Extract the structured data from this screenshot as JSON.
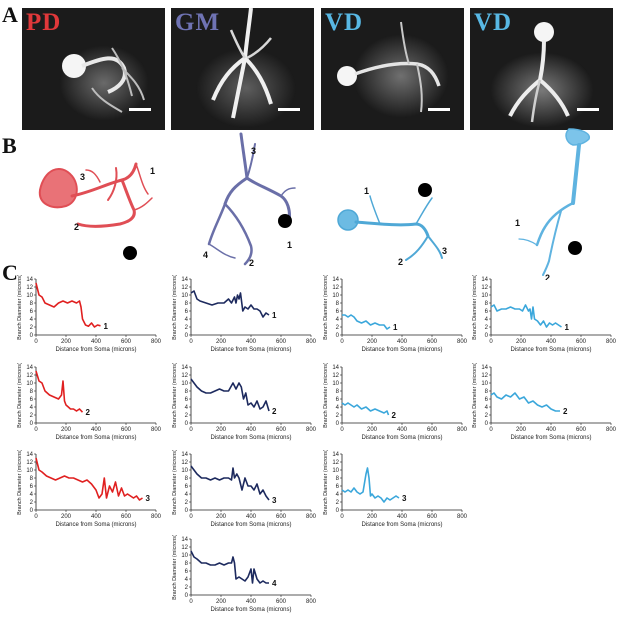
{
  "panels": {
    "a": "A",
    "b": "B",
    "c": "C"
  },
  "photos": [
    {
      "label": "PD",
      "color": "#e0383a"
    },
    {
      "label": "GM",
      "color": "#6f73b3"
    },
    {
      "label": "VD",
      "color": "#58b8e4"
    },
    {
      "label": "VD",
      "color": "#58b8e4"
    }
  ],
  "reconstructions": [
    {
      "color": "#e04e55",
      "branch_labels": [
        "1",
        "2",
        "3"
      ]
    },
    {
      "color": "#6a6fa8",
      "branch_labels": [
        "1",
        "2",
        "3",
        "4"
      ]
    },
    {
      "color": "#4fa8d6",
      "branch_labels": [
        "1",
        "2",
        "3"
      ]
    },
    {
      "color": "#5fb3e0",
      "branch_labels": [
        "1",
        "2"
      ]
    }
  ],
  "axes": {
    "ylabel": "Branch Diameter (microns)",
    "xlabel": "Distance from Soma (microns)",
    "yticks": [
      "0",
      "2",
      "4",
      "6",
      "8",
      "10",
      "12",
      "14"
    ],
    "xticks": [
      "0",
      "200",
      "400",
      "600",
      "800"
    ],
    "xlim": [
      0,
      800
    ],
    "ylim": [
      0,
      14
    ]
  },
  "chart_data": [
    {
      "type": "line",
      "column": 1,
      "row": 1,
      "color": "#e02020",
      "label": "1",
      "x": [
        0,
        20,
        40,
        60,
        90,
        120,
        150,
        180,
        210,
        240,
        270,
        290,
        300,
        310,
        330,
        350,
        370,
        390,
        410,
        430
      ],
      "y": [
        13,
        10,
        9.5,
        8,
        7.5,
        7,
        8,
        8.5,
        8,
        8.5,
        8,
        8.5,
        7,
        4,
        2.5,
        2.2,
        3,
        2,
        2.5,
        2.3
      ]
    },
    {
      "type": "line",
      "column": 1,
      "row": 2,
      "color": "#e02020",
      "label": "2",
      "x": [
        0,
        20,
        40,
        60,
        90,
        120,
        150,
        170,
        180,
        190,
        200,
        215,
        230,
        250,
        270,
        290,
        310
      ],
      "y": [
        13,
        10.5,
        10,
        8,
        7,
        6.5,
        6,
        7,
        10.5,
        5.5,
        4.5,
        4,
        3.5,
        3.5,
        3,
        3.5,
        2.7
      ]
    },
    {
      "type": "line",
      "column": 1,
      "row": 3,
      "color": "#e02020",
      "label": "3",
      "x": [
        0,
        20,
        40,
        70,
        100,
        130,
        160,
        190,
        220,
        250,
        280,
        310,
        340,
        370,
        400,
        420,
        440,
        455,
        470,
        490,
        510,
        530,
        550,
        570,
        590,
        610,
        630,
        650,
        670,
        690,
        710
      ],
      "y": [
        13,
        10,
        9.5,
        8.5,
        8,
        7.5,
        8,
        8.5,
        8,
        8,
        7.5,
        7,
        7.5,
        6.5,
        5,
        3,
        4,
        8,
        3,
        6,
        4.5,
        7,
        3.5,
        5.5,
        3.5,
        4,
        3.5,
        3,
        3.5,
        2.5,
        3
      ]
    },
    {
      "type": "line",
      "column": 2,
      "row": 1,
      "color": "#1d2a5e",
      "label": "1",
      "x": [
        0,
        20,
        40,
        60,
        100,
        140,
        180,
        220,
        250,
        270,
        290,
        300,
        310,
        320,
        330,
        345,
        360,
        380,
        400,
        420,
        440,
        460,
        480,
        500,
        520
      ],
      "y": [
        10.5,
        11,
        9,
        8.5,
        8,
        7.5,
        8,
        8,
        9,
        8,
        9.5,
        8,
        10,
        9,
        10.5,
        6,
        7,
        6.5,
        7.5,
        6.5,
        6.5,
        6,
        4.5,
        5.5,
        5
      ]
    },
    {
      "type": "line",
      "column": 2,
      "row": 2,
      "color": "#1d2a5e",
      "label": "2",
      "x": [
        0,
        20,
        40,
        70,
        100,
        130,
        160,
        190,
        220,
        250,
        280,
        300,
        320,
        335,
        350,
        365,
        380,
        400,
        420,
        440,
        460,
        480,
        500,
        520
      ],
      "y": [
        11,
        10,
        9,
        8,
        7.5,
        7.5,
        8,
        8.5,
        8,
        8,
        10,
        8.5,
        10,
        9,
        6,
        7.5,
        4.5,
        5,
        4,
        5.5,
        3.5,
        4,
        5.5,
        3
      ]
    },
    {
      "type": "line",
      "column": 2,
      "row": 3,
      "color": "#1d2a5e",
      "label": "3",
      "x": [
        0,
        20,
        40,
        70,
        100,
        130,
        160,
        190,
        220,
        250,
        270,
        280,
        290,
        305,
        320,
        340,
        360,
        380,
        400,
        420,
        440,
        460,
        480,
        500,
        520
      ],
      "y": [
        11,
        10,
        9,
        8,
        8,
        7.5,
        8,
        7.5,
        8,
        8,
        7.5,
        10.5,
        8,
        9,
        8,
        5,
        8,
        6,
        6,
        5,
        6.5,
        4,
        5,
        3.5,
        2.5
      ]
    },
    {
      "type": "line",
      "column": 2,
      "row": 4,
      "color": "#1d2a5e",
      "label": "4",
      "x": [
        0,
        20,
        40,
        70,
        100,
        130,
        160,
        190,
        220,
        250,
        270,
        280,
        290,
        300,
        320,
        340,
        360,
        380,
        400,
        410,
        420,
        440,
        460,
        480,
        500,
        520
      ],
      "y": [
        11,
        9.5,
        9,
        8,
        8,
        7.5,
        7.5,
        8,
        7.5,
        8,
        8,
        9.5,
        8,
        4,
        4.5,
        4,
        3.5,
        4.5,
        6.5,
        3,
        6.5,
        4,
        3,
        3.5,
        3,
        3
      ]
    },
    {
      "type": "line",
      "column": 3,
      "row": 1,
      "color": "#3ba7db",
      "label": "1",
      "x": [
        0,
        20,
        40,
        60,
        80,
        100,
        130,
        160,
        190,
        220,
        250,
        280,
        300,
        320
      ],
      "y": [
        5,
        5,
        4.5,
        5,
        4.5,
        3.5,
        3,
        3.5,
        2.5,
        3,
        2.5,
        2.5,
        1.5,
        2
      ]
    },
    {
      "type": "line",
      "column": 3,
      "row": 2,
      "color": "#3ba7db",
      "label": "2",
      "x": [
        0,
        20,
        40,
        60,
        80,
        100,
        130,
        160,
        190,
        220,
        250,
        280,
        300,
        310
      ],
      "y": [
        5,
        4.5,
        5,
        4.5,
        4,
        4.5,
        3.5,
        4,
        3,
        3.5,
        3,
        2.5,
        3,
        2
      ]
    },
    {
      "type": "line",
      "column": 3,
      "row": 3,
      "color": "#3ba7db",
      "label": "3",
      "x": [
        0,
        20,
        40,
        60,
        80,
        100,
        120,
        140,
        160,
        170,
        180,
        190,
        200,
        220,
        240,
        260,
        280,
        300,
        320,
        340,
        360,
        380
      ],
      "y": [
        5,
        4.5,
        5,
        4.5,
        5.5,
        4.5,
        4,
        4.5,
        9,
        10.5,
        8,
        3.5,
        4,
        3,
        3.5,
        3,
        2,
        3,
        2.5,
        3,
        3.5,
        3
      ]
    },
    {
      "type": "line",
      "column": 4,
      "row": 1,
      "color": "#3ba7db",
      "label": "1",
      "x": [
        0,
        20,
        40,
        70,
        100,
        130,
        160,
        190,
        210,
        230,
        250,
        260,
        270,
        280,
        290,
        310,
        330,
        350,
        370,
        390,
        410,
        430,
        450,
        470
      ],
      "y": [
        7,
        7.5,
        6,
        6.5,
        6.5,
        7,
        6.5,
        6.5,
        6,
        7.5,
        6,
        6.5,
        4,
        7,
        4,
        3.5,
        2.5,
        3.5,
        2,
        3,
        2.5,
        3,
        2.5,
        2
      ]
    },
    {
      "type": "line",
      "column": 4,
      "row": 2,
      "color": "#3ba7db",
      "label": "2",
      "x": [
        0,
        20,
        40,
        70,
        100,
        130,
        160,
        190,
        220,
        250,
        280,
        310,
        340,
        370,
        400,
        430,
        460
      ],
      "y": [
        7,
        7.5,
        6.5,
        6,
        7,
        6.5,
        7.5,
        6,
        6.5,
        5,
        5.5,
        4.5,
        4,
        4.5,
        3.5,
        3,
        3
      ]
    }
  ]
}
